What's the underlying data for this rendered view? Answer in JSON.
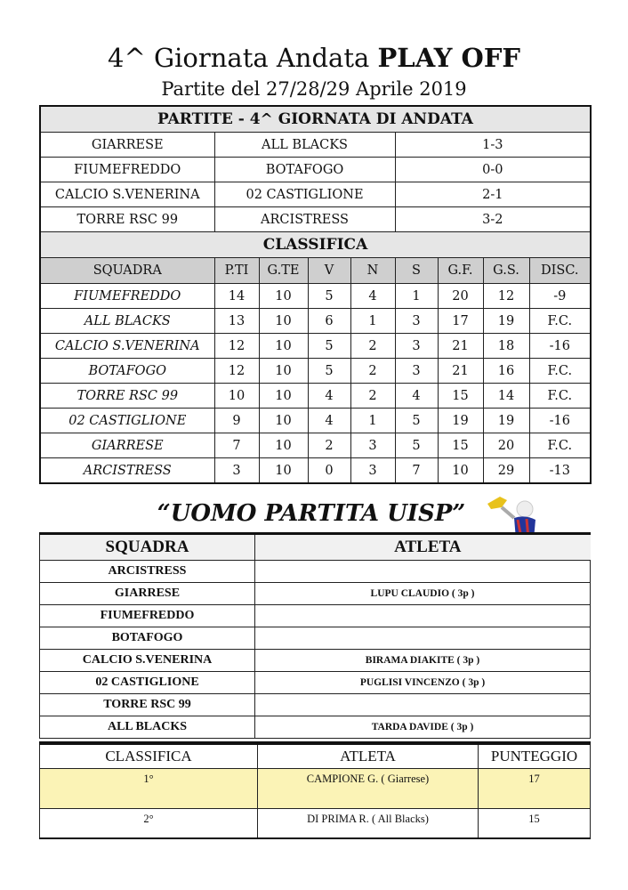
{
  "header": {
    "title": "4^ Giornata Andata",
    "title_bold": "PLAY OFF",
    "subtitle": "Partite del 27/28/29 Aprile 2019"
  },
  "matches": {
    "title": "PARTITE - 4^ GIORNATA DI ANDATA",
    "rows": [
      [
        "GIARRESE",
        "ALL BLACKS",
        "1-3"
      ],
      [
        "FIUMEFREDDO",
        "BOTAFOGO",
        "0-0"
      ],
      [
        "CALCIO S.VENERINA",
        "02 CASTIGLIONE",
        "2-1"
      ],
      [
        "TORRE RSC 99",
        "ARCISTRESS",
        "3-2"
      ]
    ]
  },
  "standings": {
    "title": "CLASSIFICA",
    "columns": [
      "SQUADRA",
      "P.TI",
      "G.TE",
      "V",
      "N",
      "S",
      "G.F.",
      "G.S.",
      "DISC."
    ],
    "rows": [
      [
        "FIUMEFREDDO",
        "14",
        "10",
        "5",
        "4",
        "1",
        "20",
        "12",
        "-9"
      ],
      [
        "ALL BLACKS",
        "13",
        "10",
        "6",
        "1",
        "3",
        "17",
        "19",
        "F.C."
      ],
      [
        "CALCIO S.VENERINA",
        "12",
        "10",
        "5",
        "2",
        "3",
        "21",
        "18",
        "-16"
      ],
      [
        "BOTAFOGO",
        "12",
        "10",
        "5",
        "2",
        "3",
        "21",
        "16",
        "F.C."
      ],
      [
        "TORRE RSC 99",
        "10",
        "10",
        "4",
        "2",
        "4",
        "15",
        "14",
        "F.C."
      ],
      [
        "02 CASTIGLIONE",
        "9",
        "10",
        "4",
        "1",
        "5",
        "19",
        "19",
        "-16"
      ],
      [
        "GIARRESE",
        "7",
        "10",
        "2",
        "3",
        "5",
        "15",
        "20",
        "F.C."
      ],
      [
        "ARCISTRESS",
        "3",
        "10",
        "0",
        "3",
        "7",
        "10",
        "29",
        "-13"
      ]
    ]
  },
  "uomo_partita": {
    "title": "“UOMO PARTITA UISP”",
    "image_icon": "footballer-trophy-icon",
    "columns": [
      "SQUADRA",
      "ATLETA"
    ],
    "rows": [
      [
        "ARCISTRESS",
        ""
      ],
      [
        "GIARRESE",
        "LUPU CLAUDIO ( 3p )"
      ],
      [
        "FIUMEFREDDO",
        ""
      ],
      [
        "BOTAFOGO",
        ""
      ],
      [
        "CALCIO S.VENERINA",
        "BIRAMA DIAKITE ( 3p )"
      ],
      [
        "02 CASTIGLIONE",
        "PUGLISI VINCENZO ( 3p )"
      ],
      [
        "TORRE RSC 99",
        ""
      ],
      [
        "ALL BLACKS",
        "TARDA DAVIDE ( 3p )"
      ]
    ]
  },
  "ranking": {
    "columns": [
      "CLASSIFICA",
      "ATLETA",
      "PUNTEGGIO"
    ],
    "highlight_color": "#fbf3b6",
    "rows": [
      [
        "1°",
        "CAMPIONE G. ( Giarrese)",
        "17"
      ],
      [
        "2°",
        "DI PRIMA R. ( All Blacks)",
        "15"
      ]
    ]
  }
}
